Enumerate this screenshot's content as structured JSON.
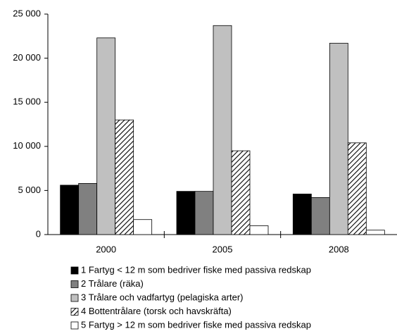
{
  "chart_data": {
    "type": "bar",
    "categories": [
      "2000",
      "2005",
      "2008"
    ],
    "series": [
      {
        "name": "1 Fartyg < 12 m som bedriver fiske med passiva redskap",
        "color": "#000000",
        "values": [
          5600,
          4900,
          4600
        ]
      },
      {
        "name": "2 Trålare (räka)",
        "color": "#808080",
        "values": [
          5800,
          4900,
          4200
        ]
      },
      {
        "name": "3 Trålare och vadfartyg (pelagiska arter)",
        "color": "#c0c0c0",
        "values": [
          22300,
          23700,
          21700
        ]
      },
      {
        "name": "4 Bottentrålare (torsk och havskräfta)",
        "color": "#000000",
        "pattern": "diagonal",
        "values": [
          13000,
          9500,
          10400
        ]
      },
      {
        "name": "5 Fartyg > 12 m som bedriver fiske med passiva redskap",
        "color": "#ffffff",
        "values": [
          1700,
          1000,
          500
        ]
      }
    ],
    "ylim": [
      0,
      25000
    ],
    "yticks": [
      0,
      {
        "value": 5000,
        "label": "5 000"
      },
      {
        "value": 10000,
        "label": "10 000"
      },
      {
        "value": 15000,
        "label": "15 000"
      },
      {
        "value": 20000,
        "label": "20 000"
      },
      {
        "value": 25000,
        "label": "25 000"
      }
    ],
    "grid": false
  }
}
